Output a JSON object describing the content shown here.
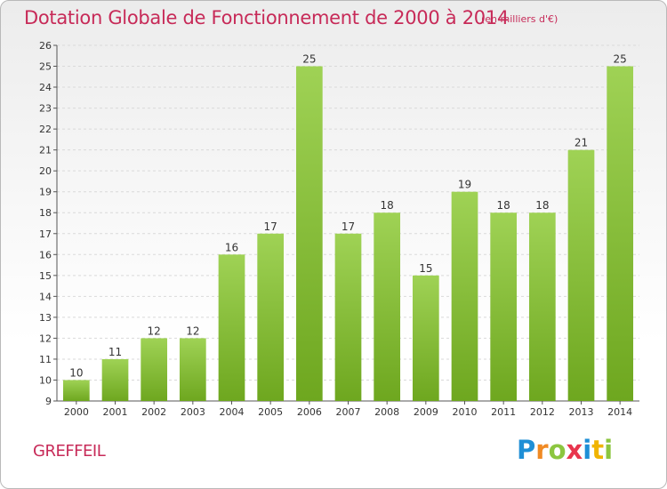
{
  "header": {
    "title": "Dotation Globale de Fonctionnement de 2000 à 2014",
    "subtitle": "(en milliers d'€)"
  },
  "footer": {
    "commune": "GREFFEIL",
    "logo_letters": [
      {
        "ch": "P",
        "color": "#1f8fd6"
      },
      {
        "ch": "r",
        "color": "#f08a24"
      },
      {
        "ch": "o",
        "color": "#8cc63f"
      },
      {
        "ch": "x",
        "color": "#e8354d"
      },
      {
        "ch": "i",
        "color": "#1f8fd6"
      },
      {
        "ch": "t",
        "color": "#f0b400"
      },
      {
        "ch": "i",
        "color": "#8cc63f"
      }
    ]
  },
  "colors": {
    "title": "#c72a58",
    "bar_light": "#9fd255",
    "bar_dark": "#6ea71f",
    "grid": "#d9d9d9",
    "axis": "#555555"
  },
  "chart_data": {
    "type": "bar",
    "title": "Dotation Globale de Fonctionnement de 2000 à 2014",
    "ylabel": "en milliers d'€",
    "xlabel": "",
    "categories": [
      "2000",
      "2001",
      "2002",
      "2003",
      "2004",
      "2005",
      "2006",
      "2007",
      "2008",
      "2009",
      "2010",
      "2011",
      "2012",
      "2013",
      "2014"
    ],
    "values": [
      10,
      11,
      12,
      12,
      16,
      17,
      25,
      17,
      18,
      15,
      19,
      18,
      18,
      21,
      25
    ],
    "ylim": [
      9,
      26
    ],
    "yticks": [
      9,
      10,
      11,
      12,
      13,
      14,
      15,
      16,
      17,
      18,
      19,
      20,
      21,
      22,
      23,
      24,
      25,
      26
    ],
    "grid": true,
    "legend": "none"
  }
}
